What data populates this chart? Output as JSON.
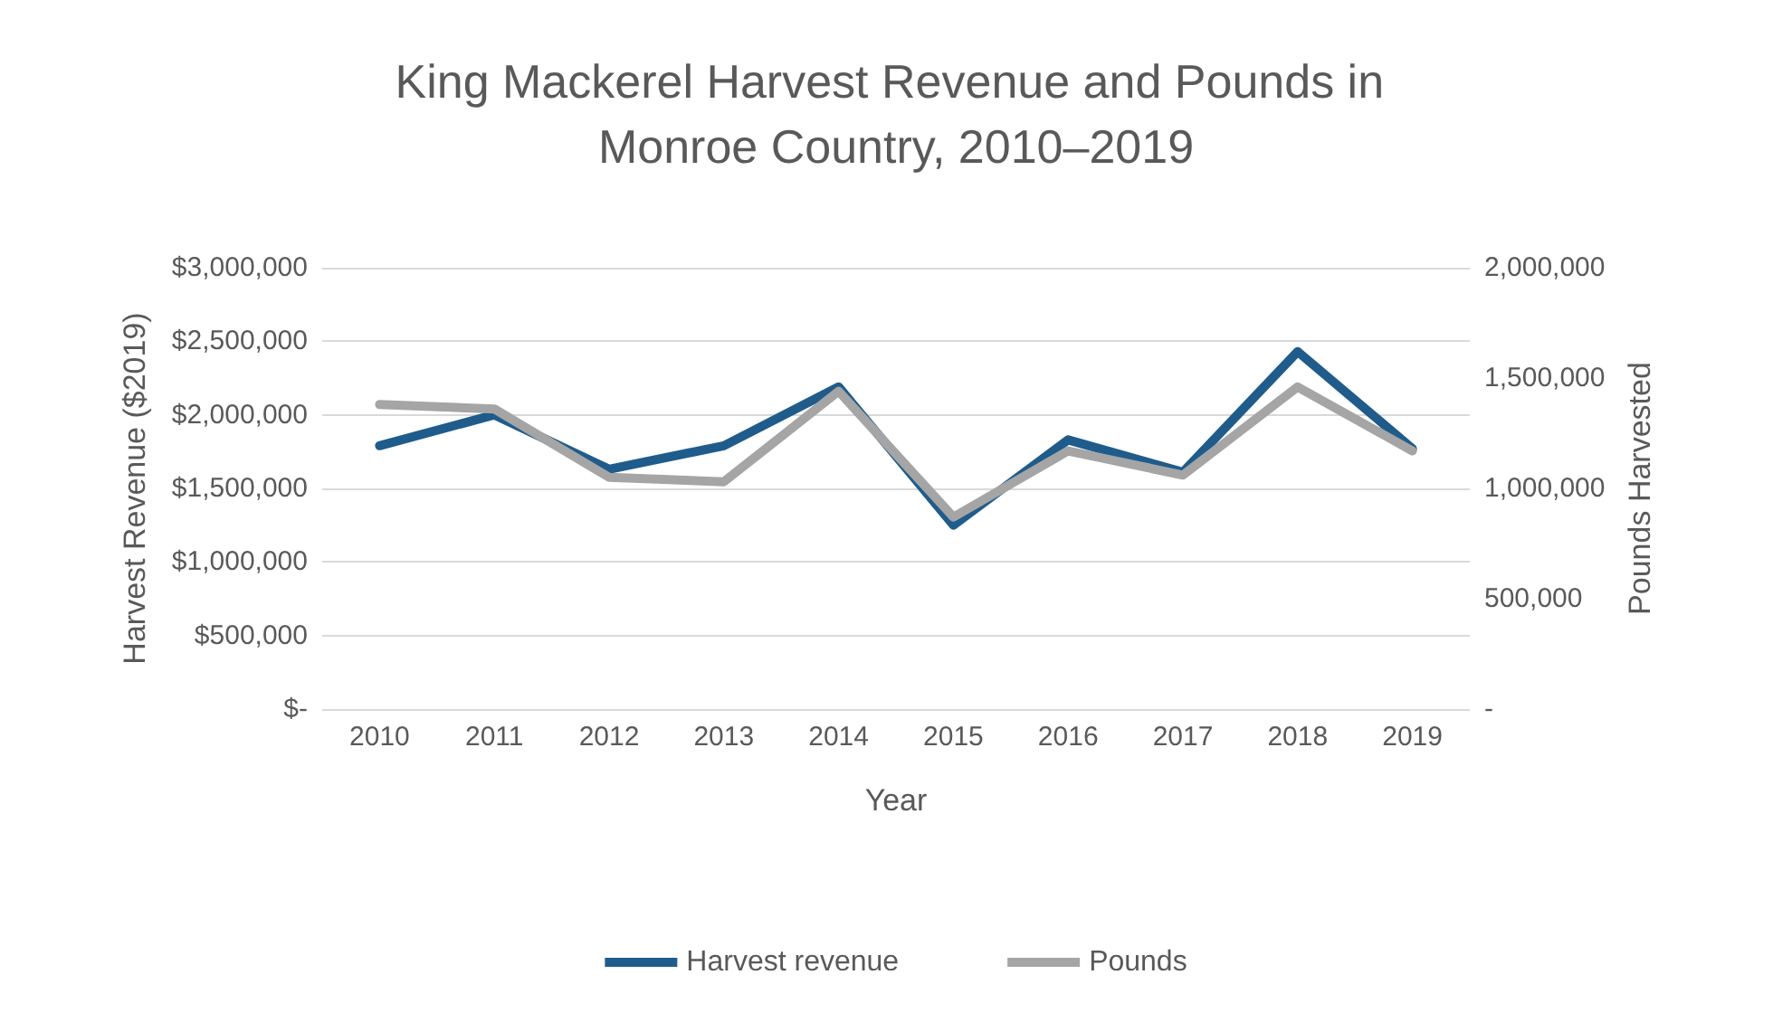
{
  "chart_data": {
    "type": "line",
    "title": "King Mackerel Harvest Revenue and Pounds in Monroe Country, 2010–2019",
    "xlabel": "Year",
    "ylabel": "Harvest Revenue ($2019)",
    "y2label": "Pounds Harvested",
    "categories": [
      "2010",
      "2011",
      "2012",
      "2013",
      "2014",
      "2015",
      "2016",
      "2017",
      "2018",
      "2019"
    ],
    "series": [
      {
        "name": "Harvest revenue",
        "color": "#1f5c8b",
        "values": [
          1790000,
          2000000,
          1630000,
          1790000,
          2190000,
          1250000,
          1830000,
          1610000,
          2430000,
          1770000
        ]
      },
      {
        "name": "Pounds",
        "color": "#a5a5a5",
        "axis": "y2",
        "values": [
          1380000,
          1360000,
          1050000,
          1030000,
          1440000,
          870000,
          1170000,
          1060000,
          1460000,
          1170000
        ]
      }
    ],
    "ylim": [
      0,
      3000000
    ],
    "yticks": [
      {
        "value": 0,
        "label": "$-"
      },
      {
        "value": 500000,
        "label": "$500,000"
      },
      {
        "value": 1000000,
        "label": "$1,000,000"
      },
      {
        "value": 1500000,
        "label": "$1,500,000"
      },
      {
        "value": 2000000,
        "label": "$2,000,000"
      },
      {
        "value": 2500000,
        "label": "$2,500,000"
      },
      {
        "value": 3000000,
        "label": "$3,000,000"
      }
    ],
    "y2lim": [
      0,
      2000000
    ],
    "y2ticks": [
      {
        "value": 0,
        "label": "-"
      },
      {
        "value": 500000,
        "label": "500,000"
      },
      {
        "value": 1000000,
        "label": "1,000,000"
      },
      {
        "value": 1500000,
        "label": "1,500,000"
      },
      {
        "value": 2000000,
        "label": "2,000,000"
      }
    ],
    "grid": "y",
    "legend": "bottom",
    "marker": "none",
    "line_style": "solid"
  }
}
